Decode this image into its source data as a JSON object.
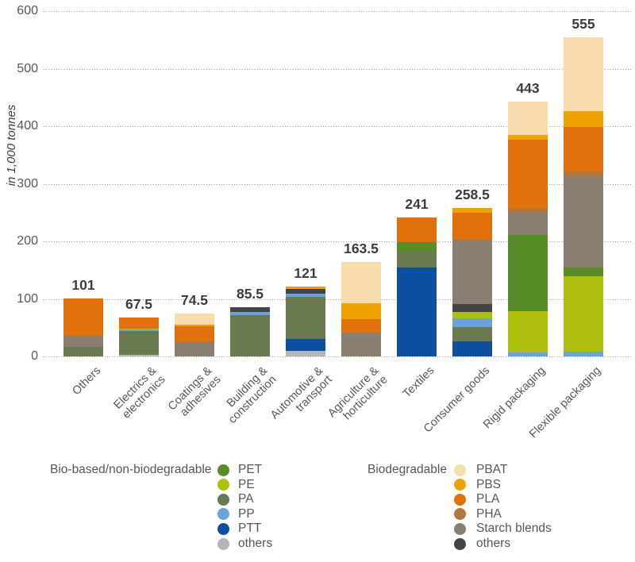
{
  "colors": {
    "PET": "#588c27",
    "PE": "#aec00d",
    "PA": "#697950",
    "PP": "#6aa3d8",
    "PTT": "#0b4f9e",
    "others_bio": "#b5b5b5",
    "PBAT": "#f8dcae",
    "PBS": "#efa202",
    "PLA": "#e2700c",
    "PHA": "#b5763c",
    "starch": "#8a7e70",
    "others_deg": "#454443",
    "axis_text": "#575756",
    "value_text": "#3c3c3b"
  },
  "chart_data": {
    "type": "bar",
    "stacked": true,
    "ylabel": "in 1,000 tonnes",
    "ylim": [
      0,
      600
    ],
    "yticks": [
      0,
      100,
      200,
      300,
      400,
      500,
      600
    ],
    "grid": "horizontal-dotted",
    "legend_position": "bottom",
    "categories": [
      "Others",
      "Electrics & electronics",
      "Coatings & adhesives",
      "Building & construction",
      "Automotive & transport",
      "Agriculture & horticulture",
      "Textiles",
      "Consumer goods",
      "Rigid packaging",
      "Flexible packaging"
    ],
    "bars": [
      {
        "category_lines": [
          "Others"
        ],
        "total": 101,
        "total_label": "101",
        "segments": [
          {
            "key": "PA",
            "value": 16
          },
          {
            "key": "starch",
            "value": 20
          },
          {
            "key": "PLA",
            "value": 65
          }
        ]
      },
      {
        "category_lines": [
          "Electrics &",
          "electronics"
        ],
        "total": 67.5,
        "total_label": "67.5",
        "segments": [
          {
            "key": "others_bio",
            "value": 2.5
          },
          {
            "key": "PA",
            "value": 42
          },
          {
            "key": "PP",
            "value": 2
          },
          {
            "key": "PE",
            "value": 2
          },
          {
            "key": "PLA",
            "value": 19
          }
        ]
      },
      {
        "category_lines": [
          "Coatings &",
          "adhesives"
        ],
        "total": 74.5,
        "total_label": "74.5",
        "segments": [
          {
            "key": "starch",
            "value": 25
          },
          {
            "key": "PLA",
            "value": 27
          },
          {
            "key": "PBS",
            "value": 3
          },
          {
            "key": "PBAT",
            "value": 19.5
          }
        ]
      },
      {
        "category_lines": [
          "Building &",
          "construction"
        ],
        "total": 85.5,
        "total_label": "85.5",
        "segments": [
          {
            "key": "PA",
            "value": 72
          },
          {
            "key": "PP",
            "value": 5
          },
          {
            "key": "others_deg",
            "value": 8.5
          }
        ]
      },
      {
        "category_lines": [
          "Automotive &",
          "transport"
        ],
        "total": 121,
        "total_label": "121",
        "segments": [
          {
            "key": "others_bio",
            "value": 9
          },
          {
            "key": "PTT",
            "value": 21
          },
          {
            "key": "PA",
            "value": 74
          },
          {
            "key": "PP",
            "value": 5
          },
          {
            "key": "others_deg",
            "value": 8
          },
          {
            "key": "PBS",
            "value": 4
          }
        ]
      },
      {
        "category_lines": [
          "Agriculture &",
          "horticulture"
        ],
        "total": 163.5,
        "total_label": "163.5",
        "segments": [
          {
            "key": "starch",
            "value": 41
          },
          {
            "key": "PLA",
            "value": 24
          },
          {
            "key": "PBS",
            "value": 27.5
          },
          {
            "key": "PBAT",
            "value": 71
          }
        ]
      },
      {
        "category_lines": [
          "Textiles"
        ],
        "total": 241,
        "total_label": "241",
        "segments": [
          {
            "key": "PTT",
            "value": 155
          },
          {
            "key": "PA",
            "value": 28
          },
          {
            "key": "PET",
            "value": 15
          },
          {
            "key": "PLA",
            "value": 43
          }
        ]
      },
      {
        "category_lines": [
          "Consumer goods"
        ],
        "total": 258.5,
        "total_label": "258.5",
        "segments": [
          {
            "key": "PTT",
            "value": 26
          },
          {
            "key": "PA",
            "value": 25
          },
          {
            "key": "PP",
            "value": 15
          },
          {
            "key": "PE",
            "value": 11
          },
          {
            "key": "others_deg",
            "value": 14
          },
          {
            "key": "starch",
            "value": 112
          },
          {
            "key": "PLA",
            "value": 46
          },
          {
            "key": "PBS",
            "value": 9.5
          }
        ]
      },
      {
        "category_lines": [
          "Rigid packaging"
        ],
        "total": 443,
        "total_label": "443",
        "segments": [
          {
            "key": "PP",
            "value": 7
          },
          {
            "key": "PE",
            "value": 71
          },
          {
            "key": "PET",
            "value": 133
          },
          {
            "key": "starch",
            "value": 39
          },
          {
            "key": "PHA",
            "value": 7.5
          },
          {
            "key": "PLA",
            "value": 119
          },
          {
            "key": "PBS",
            "value": 9
          },
          {
            "key": "PBAT",
            "value": 57.5
          }
        ]
      },
      {
        "category_lines": [
          "Flexible packaging"
        ],
        "total": 555,
        "total_label": "555",
        "segments": [
          {
            "key": "PP",
            "value": 8
          },
          {
            "key": "PE",
            "value": 131
          },
          {
            "key": "PET",
            "value": 15
          },
          {
            "key": "starch",
            "value": 159
          },
          {
            "key": "PHA",
            "value": 9
          },
          {
            "key": "PLA",
            "value": 77
          },
          {
            "key": "PBS",
            "value": 27.5
          },
          {
            "key": "PBAT",
            "value": 128.5
          }
        ]
      }
    ],
    "legend": {
      "groups": [
        {
          "title": "Bio-based/non-biodegradable",
          "items": [
            {
              "key": "PET",
              "label": "PET"
            },
            {
              "key": "PE",
              "label": "PE"
            },
            {
              "key": "PA",
              "label": "PA"
            },
            {
              "key": "PP",
              "label": "PP"
            },
            {
              "key": "PTT",
              "label": "PTT"
            },
            {
              "key": "others_bio",
              "label": "others"
            }
          ]
        },
        {
          "title": "Biodegradable",
          "items": [
            {
              "key": "PBAT",
              "label": "PBAT"
            },
            {
              "key": "PBS",
              "label": "PBS"
            },
            {
              "key": "PLA",
              "label": "PLA"
            },
            {
              "key": "PHA",
              "label": "PHA"
            },
            {
              "key": "starch",
              "label": "Starch blends"
            },
            {
              "key": "others_deg",
              "label": "others"
            }
          ]
        }
      ]
    }
  }
}
